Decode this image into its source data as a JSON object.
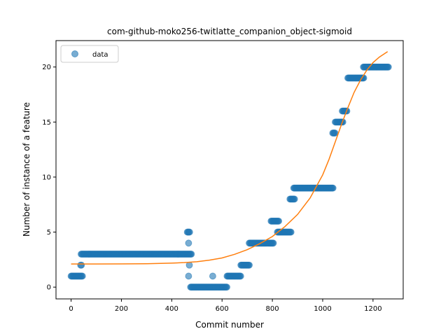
{
  "chart_data": {
    "type": "scatter",
    "title": "com-github-moko256-twitlatte_companion_object-sigmoid",
    "xlabel": "Commit number",
    "ylabel": "Number of instance of a feature",
    "xlim": [
      -60,
      1320
    ],
    "ylim": [
      -1.07,
      22.4
    ],
    "xticks": [
      0,
      200,
      400,
      600,
      800,
      1000,
      1200
    ],
    "yticks": [
      0,
      5,
      10,
      15,
      20
    ],
    "grid": false,
    "legend": {
      "placement": "top-left",
      "entries": [
        "data"
      ]
    },
    "colors": {
      "data": "#1f77b4",
      "fit": "#ff7f0e"
    },
    "series": [
      {
        "name": "data",
        "kind": "points",
        "segments": [
          {
            "x_start": 0,
            "x_end": 45,
            "y": 1
          },
          {
            "x_start": 38,
            "x_end": 42,
            "y": 2
          },
          {
            "x_start": 40,
            "x_end": 478,
            "y": 3
          },
          {
            "x_start": 462,
            "x_end": 472,
            "y": 5
          },
          {
            "x_start": 467,
            "x_end": 469,
            "y": 4
          },
          {
            "x_start": 470,
            "x_end": 472,
            "y": 2
          },
          {
            "x_start": 467,
            "x_end": 469,
            "y": 1
          },
          {
            "x_start": 475,
            "x_end": 620,
            "y": 0
          },
          {
            "x_start": 563,
            "x_end": 565,
            "y": 1
          },
          {
            "x_start": 620,
            "x_end": 675,
            "y": 1
          },
          {
            "x_start": 675,
            "x_end": 708,
            "y": 2
          },
          {
            "x_start": 708,
            "x_end": 805,
            "y": 4
          },
          {
            "x_start": 795,
            "x_end": 825,
            "y": 6
          },
          {
            "x_start": 820,
            "x_end": 875,
            "y": 5
          },
          {
            "x_start": 870,
            "x_end": 888,
            "y": 8
          },
          {
            "x_start": 885,
            "x_end": 1042,
            "y": 9
          },
          {
            "x_start": 1040,
            "x_end": 1050,
            "y": 14
          },
          {
            "x_start": 1050,
            "x_end": 1080,
            "y": 15
          },
          {
            "x_start": 1078,
            "x_end": 1098,
            "y": 16
          },
          {
            "x_start": 1100,
            "x_end": 1165,
            "y": 19
          },
          {
            "x_start": 1162,
            "x_end": 1262,
            "y": 20
          }
        ]
      },
      {
        "name": "sigmoid fit",
        "kind": "line",
        "x": [
          0,
          100,
          200,
          300,
          400,
          450,
          500,
          550,
          600,
          650,
          700,
          750,
          800,
          850,
          900,
          950,
          1000,
          1025,
          1050,
          1075,
          1100,
          1125,
          1150,
          1175,
          1200,
          1225,
          1258
        ],
        "y": [
          2.1,
          2.1,
          2.11,
          2.13,
          2.18,
          2.23,
          2.31,
          2.45,
          2.65,
          2.98,
          3.4,
          3.95,
          4.6,
          5.5,
          6.6,
          8.1,
          10.2,
          11.6,
          13.2,
          14.8,
          16.3,
          17.7,
          18.8,
          19.7,
          20.4,
          20.9,
          21.4
        ]
      }
    ]
  }
}
